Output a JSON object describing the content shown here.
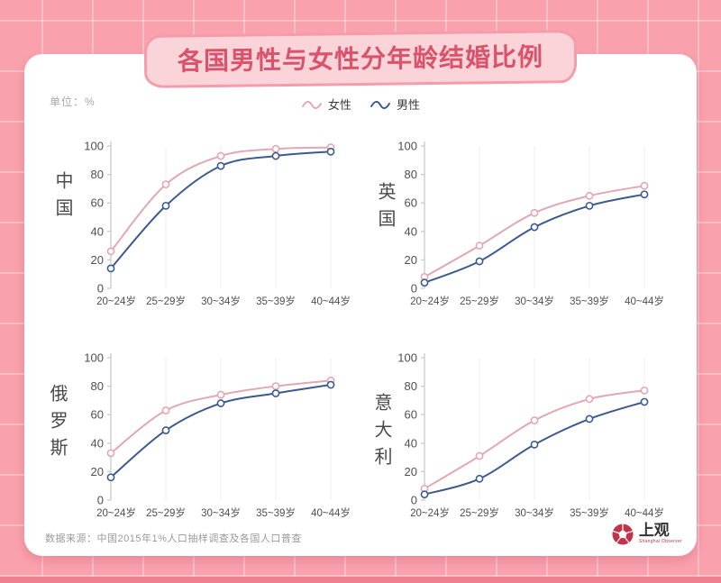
{
  "title": "各国男性与女性分年龄结婚比例",
  "unit_label": "单位：%",
  "legend": {
    "female_label": "女性",
    "male_label": "男性"
  },
  "colors": {
    "female": "#E2A7B5",
    "male": "#3D5A8E",
    "title": "#D8536B",
    "background": "#F9A2AE",
    "banner_fill": "#FAD4D9",
    "banner_border": "#F49CAA",
    "axis": "#C9C9CE",
    "tick_text": "#4F4F4F",
    "gridline": "#F0EDEF"
  },
  "chart_data": [
    {
      "type": "line",
      "country": "中国",
      "categories": [
        "20~24岁",
        "25~29岁",
        "30~34岁",
        "35~39岁",
        "40~44岁"
      ],
      "series": [
        {
          "name": "女性",
          "color": "#E2A7B5",
          "values": [
            26,
            73,
            93,
            98,
            99
          ]
        },
        {
          "name": "男性",
          "color": "#3D5A8E",
          "values": [
            14,
            58,
            86,
            93,
            96
          ]
        }
      ],
      "ylim": [
        0,
        100
      ],
      "y_ticks": [
        0,
        20,
        40,
        60,
        80,
        100
      ],
      "grid": "vertical-light",
      "legend_position": "shared-top-center"
    },
    {
      "type": "line",
      "country": "英国",
      "categories": [
        "20~24岁",
        "25~29岁",
        "30~34岁",
        "35~39岁",
        "40~44岁"
      ],
      "series": [
        {
          "name": "女性",
          "color": "#E2A7B5",
          "values": [
            8,
            30,
            53,
            65,
            72
          ]
        },
        {
          "name": "男性",
          "color": "#3D5A8E",
          "values": [
            4,
            19,
            43,
            58,
            66
          ]
        }
      ],
      "ylim": [
        0,
        100
      ],
      "y_ticks": [
        0,
        20,
        40,
        60,
        80,
        100
      ],
      "grid": "vertical-light",
      "legend_position": "shared-top-center"
    },
    {
      "type": "line",
      "country": "俄罗斯",
      "categories": [
        "20~24岁",
        "25~29岁",
        "30~34岁",
        "35~39岁",
        "40~44岁"
      ],
      "series": [
        {
          "name": "女性",
          "color": "#E2A7B5",
          "values": [
            33,
            63,
            74,
            80,
            84
          ]
        },
        {
          "name": "男性",
          "color": "#3D5A8E",
          "values": [
            16,
            49,
            68,
            75,
            81
          ]
        }
      ],
      "ylim": [
        0,
        100
      ],
      "y_ticks": [
        0,
        20,
        40,
        60,
        80,
        100
      ],
      "grid": "vertical-light",
      "legend_position": "shared-top-center"
    },
    {
      "type": "line",
      "country": "意大利",
      "categories": [
        "20~24岁",
        "25~29岁",
        "30~34岁",
        "35~39岁",
        "40~44岁"
      ],
      "series": [
        {
          "name": "女性",
          "color": "#E2A7B5",
          "values": [
            8,
            31,
            56,
            71,
            77
          ]
        },
        {
          "name": "男性",
          "color": "#3D5A8E",
          "values": [
            4,
            15,
            39,
            57,
            69
          ]
        }
      ],
      "ylim": [
        0,
        100
      ],
      "y_ticks": [
        0,
        20,
        40,
        60,
        80,
        100
      ],
      "grid": "vertical-light",
      "legend_position": "shared-top-center"
    }
  ],
  "source": {
    "text": "数据来源：中国2015年1%人口抽样调查及各国人口普查"
  },
  "logo": {
    "name": "上观",
    "subtitle": "Shanghai Observer"
  },
  "icons": {
    "legend_female": "wave-line-icon",
    "legend_male": "wave-line-icon",
    "logo": "flower-aperture-icon"
  }
}
